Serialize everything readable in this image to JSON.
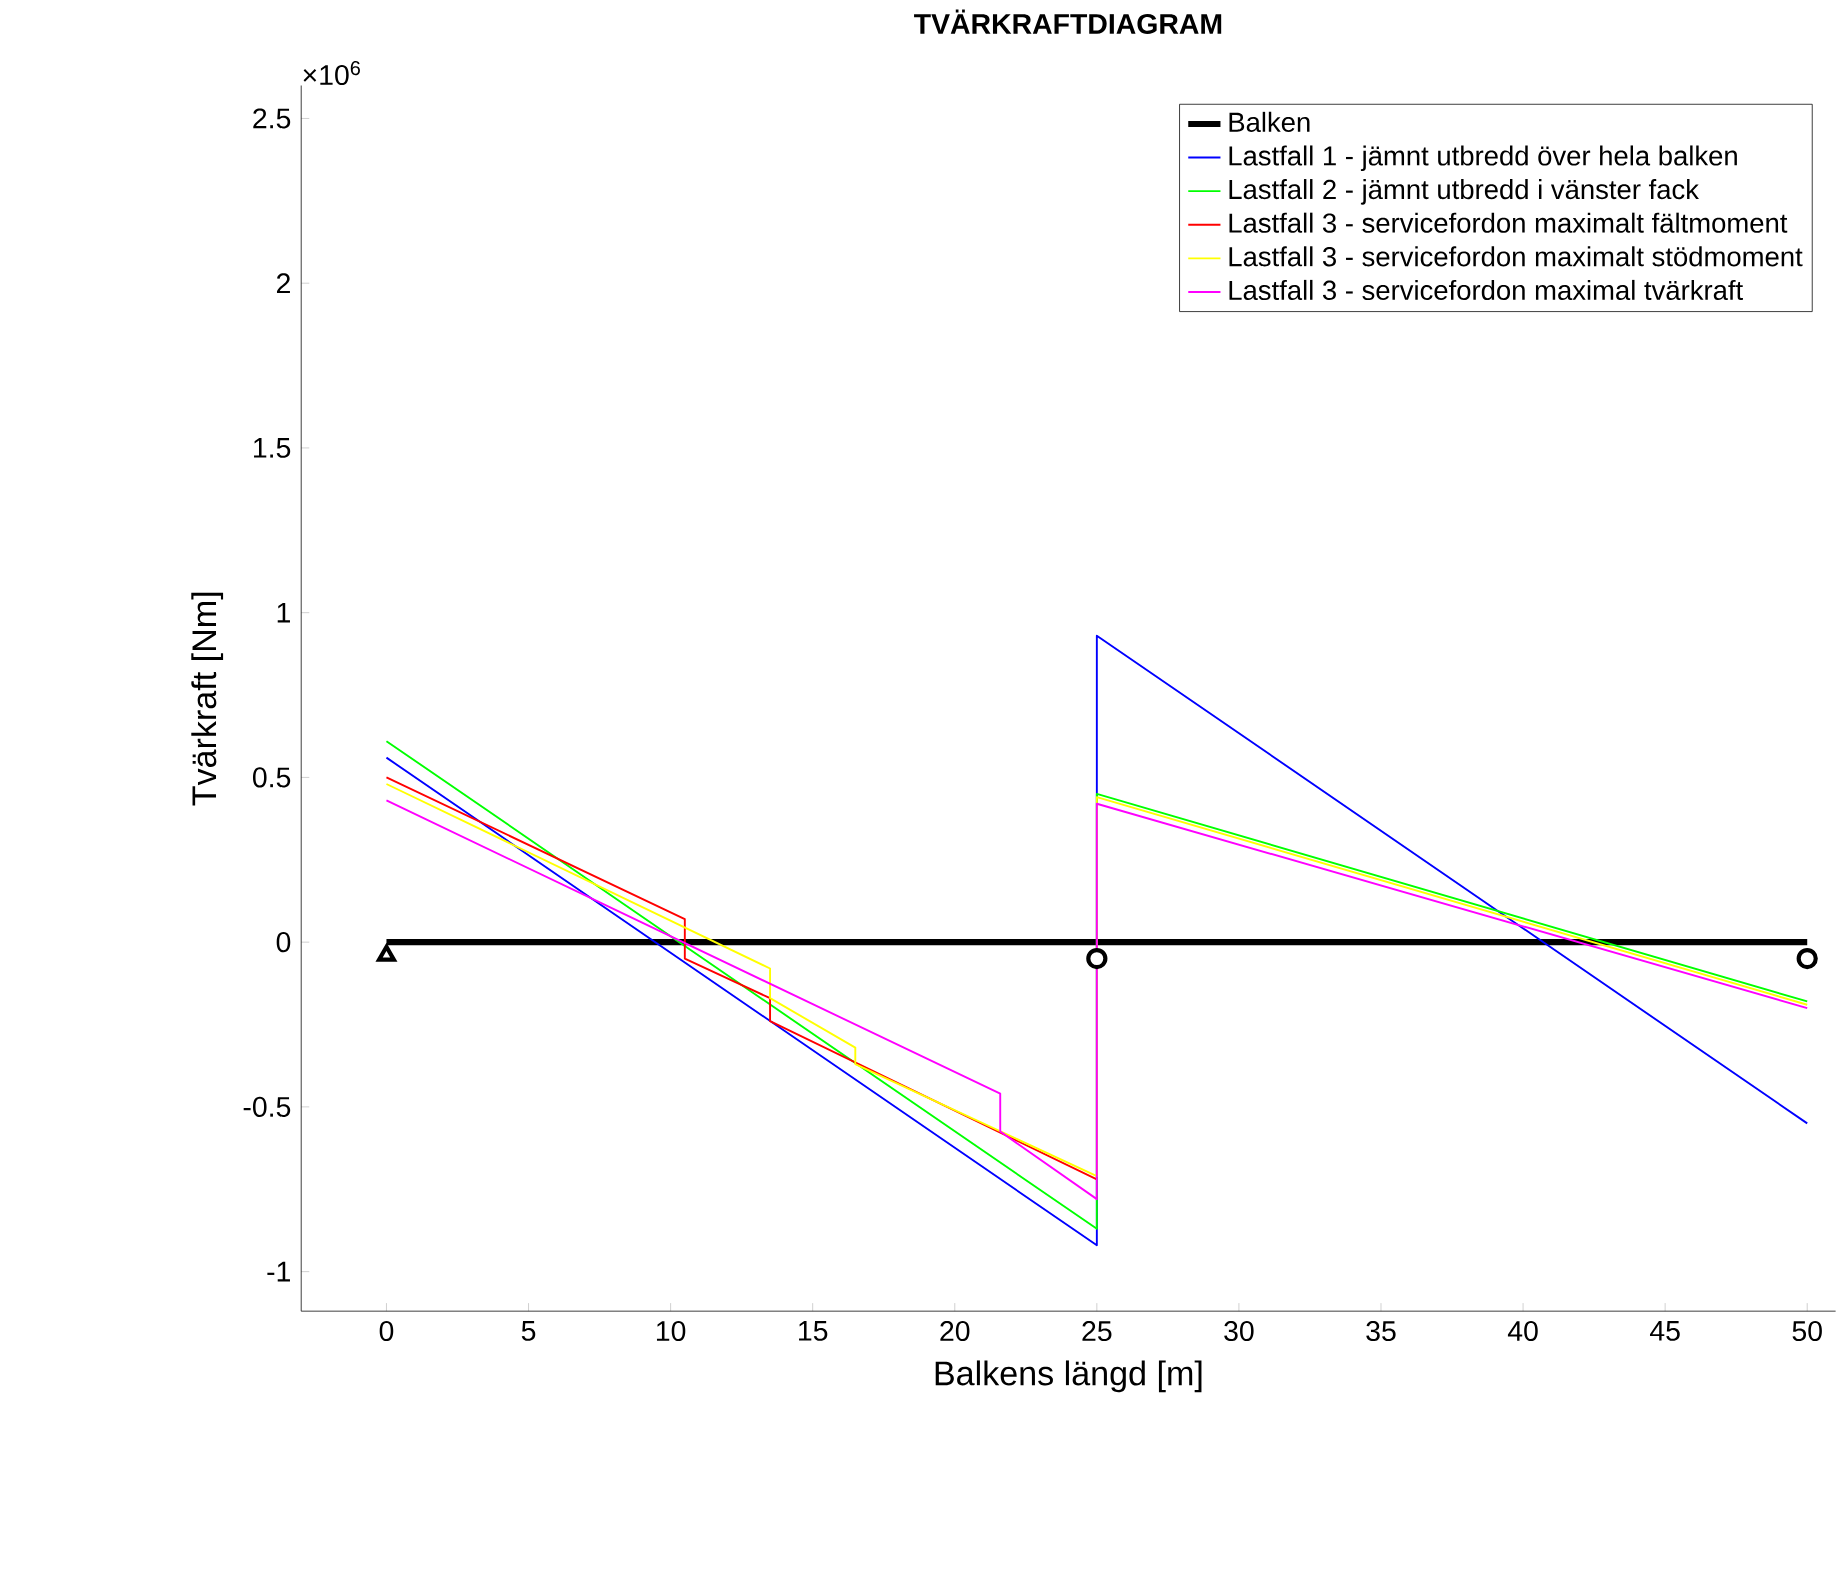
{
  "chart_data": {
    "type": "line",
    "title": "TVÄRKRAFTDIAGRAM",
    "xlabel": "Balkens längd [m]",
    "ylabel": "Tvärkraft [Nm]",
    "annotations": [
      "×10$^{6}$"
    ],
    "xlim": [
      -3,
      51
    ],
    "ylim": [
      -1.12,
      2.6
    ],
    "xticks": [
      0,
      5,
      10,
      15,
      20,
      25,
      30,
      35,
      40,
      45,
      50
    ],
    "yticks": [
      -1,
      -0.5,
      0,
      0.5,
      1,
      1.5,
      2,
      2.5
    ],
    "grid": false,
    "legend": "top right",
    "line_style": "solid",
    "series": [
      {
        "name": "Balken",
        "color": "#000000",
        "x": [
          0,
          50
        ],
        "values": [
          0,
          0
        ]
      },
      {
        "name": "Lastfall 1 - jämnt utbredd över hela balken",
        "color": "#0000ff",
        "x": [
          0,
          25,
          25,
          50
        ],
        "values": [
          0.56,
          -0.92,
          0.93,
          -0.55
        ]
      },
      {
        "name": "Lastfall 2 - jämnt utbredd i vänster fack",
        "color": "#00ff00",
        "x": [
          0,
          25,
          25,
          50
        ],
        "values": [
          0.61,
          -0.87,
          0.45,
          -0.18
        ]
      },
      {
        "name": "Lastfall 3 - servicefordon maximalt fältmoment",
        "color": "#ff0000",
        "x": [
          0,
          10.5,
          10.5,
          13.5,
          13.5,
          25
        ],
        "values": [
          0.5,
          0.07,
          -0.05,
          -0.17,
          -0.24,
          -0.72
        ]
      },
      {
        "name": "Lastfall 3 - servicefordon maximalt stödmoment",
        "color": "#ffff00",
        "x": [
          0,
          13.5,
          13.5,
          16.5,
          16.5,
          25,
          25,
          50
        ],
        "values": [
          0.48,
          -0.08,
          -0.17,
          -0.32,
          -0.37,
          -0.71,
          0.44,
          -0.19
        ]
      },
      {
        "name": "Lastfall 3 - servicefordon maximal tvärkraft",
        "color": "#ff00ff",
        "x": [
          0,
          21.6,
          21.6,
          25,
          25,
          50
        ],
        "values": [
          0.43,
          -0.46,
          -0.575,
          -0.78,
          0.42,
          -0.2
        ]
      },
      {
        "type": "scatter",
        "marker": "triangle",
        "color": "#000000",
        "x": [
          0
        ],
        "values": [
          -0.04
        ]
      },
      {
        "type": "scatter",
        "marker": "circle",
        "color": "#000000",
        "x": [
          25,
          50
        ],
        "values": [
          -0.05,
          -0.05
        ]
      }
    ]
  }
}
